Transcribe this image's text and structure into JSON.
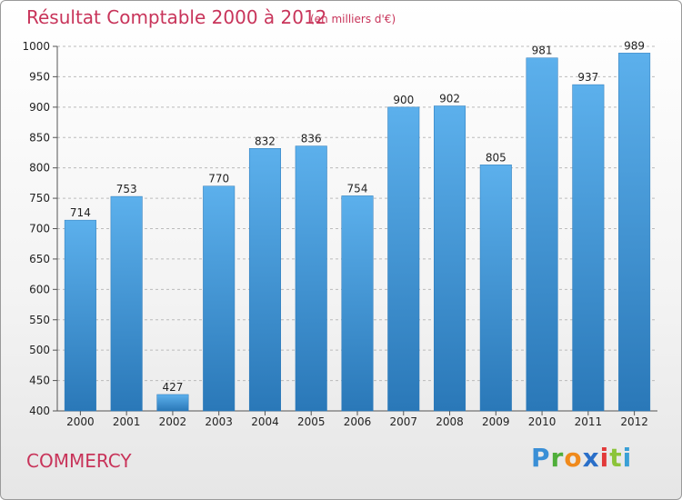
{
  "chart_data": {
    "type": "bar",
    "title": "Résultat Comptable 2000 à 2012",
    "subtitle": "(en milliers d'€)",
    "xlabel": "",
    "ylabel": "",
    "categories": [
      "2000",
      "2001",
      "2002",
      "2003",
      "2004",
      "2005",
      "2006",
      "2007",
      "2008",
      "2009",
      "2010",
      "2011",
      "2012"
    ],
    "values": [
      714,
      753,
      427,
      770,
      832,
      836,
      754,
      900,
      902,
      805,
      981,
      937,
      989
    ],
    "value_labels": [
      "714",
      "753",
      "427",
      "770",
      "832",
      "836",
      "754",
      "900",
      "902",
      "805",
      "981",
      "937",
      "989"
    ],
    "ylim": [
      400,
      1000
    ],
    "yticks": [
      400,
      450,
      500,
      550,
      600,
      650,
      700,
      750,
      800,
      850,
      900,
      950,
      1000
    ],
    "ytick_labels": [
      "400",
      "450",
      "500",
      "550",
      "600",
      "650",
      "700",
      "750",
      "800",
      "850",
      "900",
      "950",
      "1000"
    ],
    "grid": true,
    "bar_color": "#4a9ddf",
    "bar_color_light": "#5cb0ec",
    "bar_color_dark": "#2a78b8"
  },
  "footer": {
    "commune": "COMMERCY",
    "logo": {
      "p": "P",
      "r": "r",
      "o": "o",
      "x": "x",
      "i1": "i",
      "t": "t",
      "i2": "i"
    }
  },
  "colors": {
    "title": "#c8345a",
    "grid": "#bbbbbb"
  }
}
